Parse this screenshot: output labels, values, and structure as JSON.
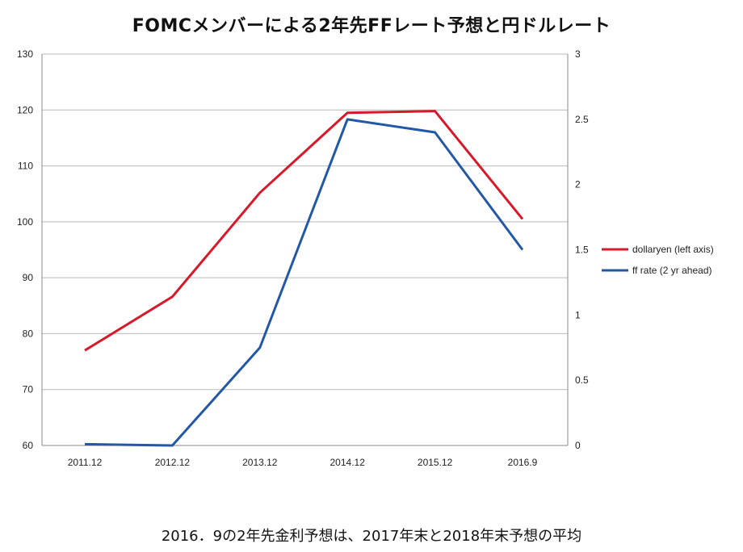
{
  "title": "FOMCメンバーによる2年先FFレート予想と円ドルレート",
  "caption": "2016．9の2年先金利予想は、2017年末と2018年末予想の平均",
  "chart_data": {
    "type": "line",
    "categories": [
      "2011.12",
      "2012.12",
      "2013.12",
      "2014.12",
      "2015.12",
      "2016.9"
    ],
    "series": [
      {
        "name": "dollaryen (left axis)",
        "axis": "left",
        "color": "#d7192a",
        "values": [
          77.0,
          86.6,
          105.2,
          119.5,
          119.8,
          100.5
        ]
      },
      {
        "name": "ff rate (2 yr ahead)",
        "axis": "right",
        "color": "#2358a6",
        "values": [
          0.01,
          0.0,
          0.75,
          2.5,
          2.4,
          1.5
        ]
      }
    ],
    "y_left": {
      "min": 60,
      "max": 130,
      "ticks": [
        "60",
        "70",
        "80",
        "90",
        "100",
        "110",
        "120",
        "130"
      ]
    },
    "y_right": {
      "min": 0,
      "max": 3,
      "ticks": [
        "0",
        "0.5",
        "1",
        "1.5",
        "2",
        "2.5",
        "3"
      ]
    },
    "grid": true,
    "legend_position": "right"
  }
}
